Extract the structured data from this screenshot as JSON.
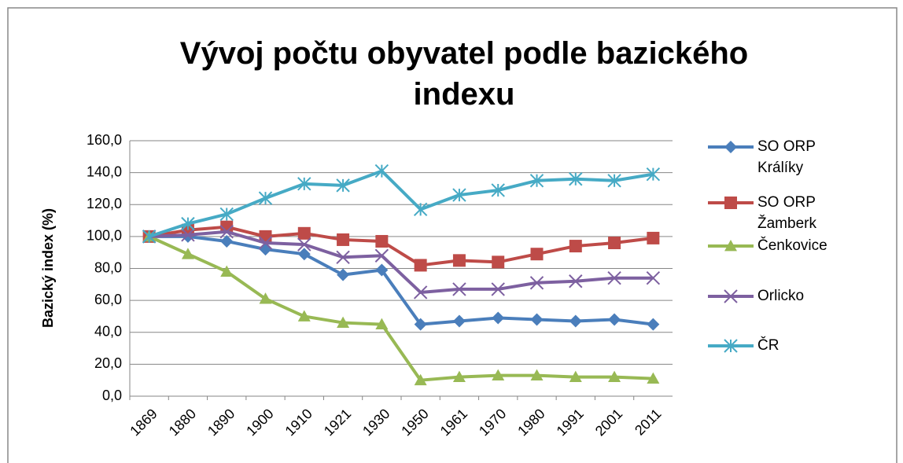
{
  "chart_data": {
    "type": "line",
    "title": "Vývoj počtu obyvatel podle bazického indexu",
    "y_label": "Bazický index (%)",
    "categories": [
      "1869",
      "1880",
      "1890",
      "1900",
      "1910",
      "1921",
      "1930",
      "1950",
      "1961",
      "1970",
      "1980",
      "1991",
      "2001",
      "2011"
    ],
    "series": [
      {
        "name": "SO ORP Králíky",
        "color": "#4a7ebb",
        "marker": "diamond",
        "values": [
          100,
          100,
          97,
          92,
          89,
          76,
          79,
          45,
          47,
          49,
          48,
          47,
          48,
          45
        ]
      },
      {
        "name": "SO ORP Žamberk",
        "color": "#be4b48",
        "marker": "square",
        "values": [
          100,
          104,
          106,
          100,
          102,
          98,
          97,
          82,
          85,
          84,
          89,
          94,
          96,
          99
        ]
      },
      {
        "name": "Čenkovice",
        "color": "#98b954",
        "marker": "triangle",
        "values": [
          100,
          89,
          78,
          61,
          50,
          46,
          45,
          10,
          12,
          13,
          13,
          12,
          12,
          11
        ]
      },
      {
        "name": "Orlicko",
        "color": "#7d60a0",
        "marker": "x",
        "values": [
          100,
          101,
          103,
          96,
          95,
          87,
          88,
          65,
          67,
          67,
          71,
          72,
          74,
          74
        ]
      },
      {
        "name": "ČR",
        "color": "#46aac5",
        "marker": "star",
        "values": [
          100,
          108,
          114,
          124,
          133,
          132,
          141,
          117,
          126,
          129,
          135,
          136,
          135,
          139
        ]
      }
    ],
    "ylim": [
      0,
      160
    ],
    "yticks": [
      {
        "value": 0,
        "label": "0,0"
      },
      {
        "value": 20,
        "label": "20,0"
      },
      {
        "value": 40,
        "label": "40,0"
      },
      {
        "value": 60,
        "label": "60,0"
      },
      {
        "value": 80,
        "label": "80,0"
      },
      {
        "value": 100,
        "label": "100,0"
      },
      {
        "value": 120,
        "label": "120,0"
      },
      {
        "value": 140,
        "label": "140,0"
      },
      {
        "value": 160,
        "label": "160,0"
      }
    ],
    "grid": true,
    "legend": "right"
  }
}
